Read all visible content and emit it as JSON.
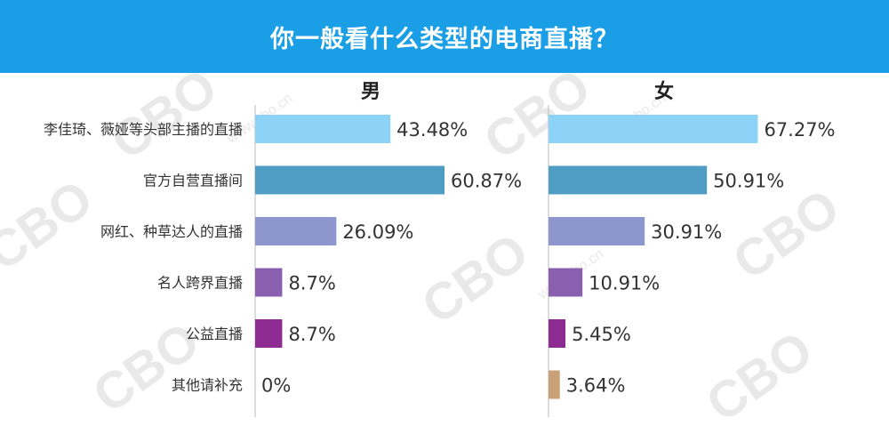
{
  "header": {
    "title": "你一般看什么类型的电商直播？"
  },
  "watermark": {
    "brand": "CBO",
    "site": "www.cbo.cn"
  },
  "chart_data": {
    "type": "bar",
    "orientation": "horizontal",
    "title": "你一般看什么类型的电商直播？",
    "categories": [
      "李佳琦、薇娅等头部主播的直播",
      "官方自营直播间",
      "网红、种草达人的直播",
      "名人跨界直播",
      "公益直播",
      "其他请补充"
    ],
    "bar_colors": [
      "#8dd3f7",
      "#4f9cc4",
      "#8e97cd",
      "#8a5fb0",
      "#8e2b93",
      "#c9a27a"
    ],
    "panels": [
      {
        "name": "男",
        "values": [
          43.48,
          60.87,
          26.09,
          8.7,
          8.7,
          0
        ],
        "value_labels": [
          "43.48%",
          "60.87%",
          "26.09%",
          "8.7%",
          "8.7%",
          "0%"
        ]
      },
      {
        "name": "女",
        "values": [
          67.27,
          50.91,
          30.91,
          10.91,
          5.45,
          3.64
        ],
        "value_labels": [
          "67.27%",
          "50.91%",
          "30.91%",
          "10.91%",
          "5.45%",
          "3.64%"
        ]
      }
    ],
    "xlim": [
      0,
      100
    ],
    "grid": false,
    "legend": "none"
  }
}
